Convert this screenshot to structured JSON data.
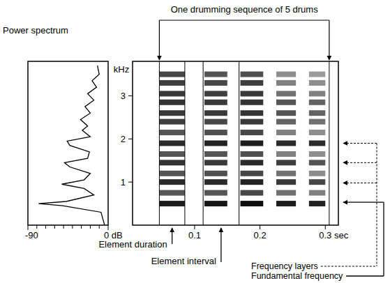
{
  "chart_data": [
    {
      "type": "line",
      "title": "Power spectrum",
      "x": [
        -4,
        -8,
        -51,
        -78,
        -47,
        -16,
        -27,
        -52,
        -27,
        -20,
        -43,
        -49,
        -23,
        -21,
        -43,
        -46,
        -20,
        -29,
        -23,
        -31,
        -20,
        -26,
        -16,
        -23,
        -13,
        -18,
        -10,
        -12
      ],
      "values": [
        0.0,
        0.3,
        0.45,
        0.5,
        0.55,
        0.7,
        0.85,
        0.95,
        1.05,
        1.2,
        1.35,
        1.45,
        1.55,
        1.7,
        1.85,
        1.95,
        2.05,
        2.2,
        2.3,
        2.45,
        2.6,
        2.75,
        2.9,
        3.05,
        3.2,
        3.35,
        3.5,
        3.7
      ],
      "xlim": [
        -90,
        0
      ],
      "xticks": [
        -90,
        {
          "value": 0,
          "label": "0 dB"
        }
      ],
      "ylim": [
        0,
        3.8
      ],
      "tick_labels": "x",
      "color": "#000000"
    },
    {
      "type": "heatmap",
      "y_label": "kHz",
      "xlim": [
        0.005,
        0.32
      ],
      "xticks": [
        0.1,
        0.2,
        {
          "value": 0.3,
          "label": "0.3 sec"
        }
      ],
      "ylim": [
        0,
        3.8
      ],
      "yticks": [
        1,
        2,
        3
      ],
      "elements": {
        "start": [
          0.046,
          0.115,
          0.17,
          0.225,
          0.275
        ],
        "end": [
          0.085,
          0.15,
          0.205,
          0.255,
          0.3
        ]
      },
      "frequencies": [
        0.5,
        0.75,
        1.0,
        1.2,
        1.45,
        1.65,
        1.9,
        2.15,
        2.4,
        2.6,
        2.85,
        3.05,
        3.3,
        3.5
      ],
      "levels": [
        [
          -10,
          -30,
          -15,
          -30,
          -18,
          -30,
          -15,
          -30,
          -22,
          -20,
          -18,
          -20,
          -22,
          -25
        ],
        [
          -8,
          -30,
          -15,
          -28,
          -20,
          -30,
          -12,
          -28,
          -25,
          -20,
          -20,
          -22,
          -25,
          -30
        ],
        [
          -5,
          -25,
          -12,
          -25,
          -15,
          -28,
          -10,
          -25,
          -20,
          -18,
          -18,
          -20,
          -22,
          -28
        ],
        [
          -10,
          -40,
          -20,
          -40,
          -22,
          -45,
          -15,
          -45,
          -35,
          -30,
          -30,
          -40,
          -45,
          -50
        ],
        [
          -12,
          -45,
          -25,
          -50,
          -30,
          -50,
          -15,
          -50,
          -40,
          -35,
          -35,
          -45,
          -50,
          -55
        ]
      ],
      "zlim": [
        -90,
        0
      ],
      "color": "#000000",
      "annotations": {
        "sequence": {
          "text": "One drumming sequence of 5 drums",
          "start": 0.046,
          "end": 0.306
        },
        "duration": {
          "text": "Element duration",
          "start": 0.046,
          "end": 0.085
        },
        "interval": {
          "text": "Element interval",
          "start": 0.113,
          "end": 0.168
        },
        "layers": {
          "text": "Frequency layers",
          "frequencies": [
            0.98,
            1.45,
            1.9
          ]
        },
        "fundamental": {
          "text": "Fundamental frequency",
          "frequency": 0.53
        }
      }
    }
  ]
}
